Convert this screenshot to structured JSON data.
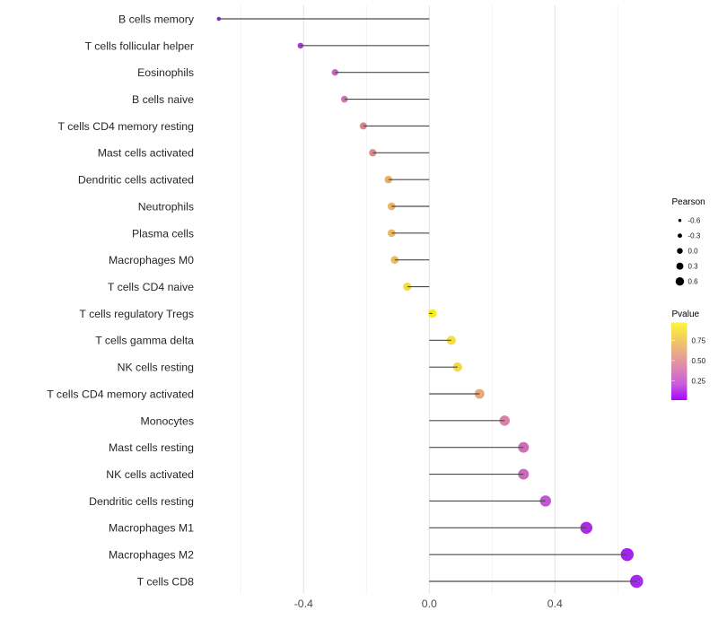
{
  "chart_data": {
    "type": "scatter",
    "variant": "lollipop",
    "title": "",
    "xlabel": "",
    "ylabel": "",
    "xlim": [
      -0.73,
      0.73
    ],
    "grid_values": [
      -0.6,
      -0.4,
      -0.2,
      0.0,
      0.2,
      0.4,
      0.6
    ],
    "x_ticks": [
      {
        "label": "-0.4",
        "value": -0.4
      },
      {
        "label": "0.0",
        "value": 0.0
      },
      {
        "label": "0.4",
        "value": 0.4
      }
    ],
    "series_encoding": {
      "x": "pearson correlation",
      "point_size": "Pearson",
      "point_color": "Pvalue"
    },
    "points": [
      {
        "label": "B cells memory",
        "pearson": -0.67,
        "color": "#8E2BD9"
      },
      {
        "label": "T cells follicular helper",
        "pearson": -0.41,
        "color": "#A63BD2"
      },
      {
        "label": "Eosinophils",
        "pearson": -0.3,
        "color": "#C364C4"
      },
      {
        "label": "B cells naive",
        "pearson": -0.27,
        "color": "#CD73BA"
      },
      {
        "label": "T cells CD4 memory resting",
        "pearson": -0.21,
        "color": "#DA8590"
      },
      {
        "label": "Mast cells activated",
        "pearson": -0.18,
        "color": "#DB8A8C"
      },
      {
        "label": "Dendritic cells activated",
        "pearson": -0.13,
        "color": "#E9B168"
      },
      {
        "label": "Neutrophils",
        "pearson": -0.12,
        "color": "#EBB564"
      },
      {
        "label": "Plasma cells",
        "pearson": -0.12,
        "color": "#EBB764"
      },
      {
        "label": "Macrophages M0",
        "pearson": -0.11,
        "color": "#ECBA60"
      },
      {
        "label": "T cells CD4 naive",
        "pearson": -0.07,
        "color": "#F3DC41"
      },
      {
        "label": "T cells regulatory  Tregs",
        "pearson": 0.01,
        "color": "#F4F112"
      },
      {
        "label": "T cells gamma delta",
        "pearson": 0.07,
        "color": "#F5DF3F"
      },
      {
        "label": "NK cells resting",
        "pearson": 0.09,
        "color": "#F2D84A"
      },
      {
        "label": "T cells CD4 memory activated",
        "pearson": 0.16,
        "color": "#E8A878"
      },
      {
        "label": "Monocytes",
        "pearson": 0.24,
        "color": "#DD7FA6"
      },
      {
        "label": "Mast cells resting",
        "pearson": 0.3,
        "color": "#D06BB8"
      },
      {
        "label": "NK cells activated",
        "pearson": 0.3,
        "color": "#CC67BE"
      },
      {
        "label": "Dendritic cells resting",
        "pearson": 0.37,
        "color": "#C455D6"
      },
      {
        "label": "Macrophages M1",
        "pearson": 0.5,
        "color": "#A92BE2"
      },
      {
        "label": "Macrophages M2",
        "pearson": 0.63,
        "color": "#A322F2"
      },
      {
        "label": "T cells CD8",
        "pearson": 0.66,
        "color": "#A32BEE"
      }
    ]
  },
  "legend_pearson": {
    "title": "Pearson",
    "items": [
      {
        "label": "-0.6",
        "value": -0.6
      },
      {
        "label": "-0.3",
        "value": -0.3
      },
      {
        "label": "0.0",
        "value": 0.0
      },
      {
        "label": "0.3",
        "value": 0.3
      },
      {
        "label": "0.6",
        "value": 0.6
      }
    ],
    "dot_color": "#000000"
  },
  "legend_pvalue": {
    "title": "Pvalue",
    "ticks": [
      {
        "label": "0.75",
        "value": 0.75
      },
      {
        "label": "0.50",
        "value": 0.5
      },
      {
        "label": "0.25",
        "value": 0.25
      }
    ],
    "scale_range": [
      0.01,
      0.97
    ],
    "gradient_top_to_bottom": [
      "#FBF63C",
      "#F3CE5E",
      "#E8A98A",
      "#DC84B4",
      "#C75BDC",
      "#A707FA"
    ]
  },
  "style_colors": {
    "stem": "#4A4A4A",
    "grid_major": "#E4E4E4",
    "grid_minor": "#F0F0F0",
    "background": "#FFFFFF"
  }
}
